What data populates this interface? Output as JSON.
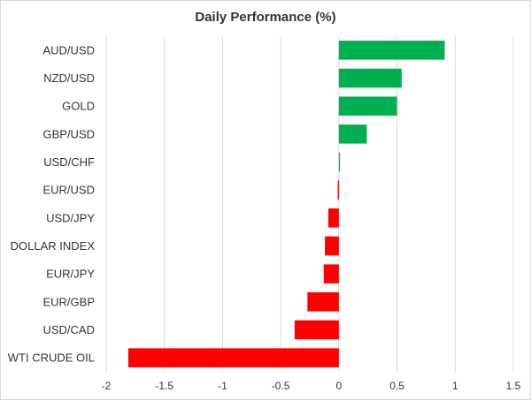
{
  "chart_data": {
    "type": "bar",
    "orientation": "horizontal",
    "title": "Daily Performance (%)",
    "xlabel": "",
    "ylabel": "",
    "xlim": [
      -2,
      1.5
    ],
    "x_ticks": [
      -2,
      -1.5,
      -1,
      -0.5,
      0,
      0.5,
      1,
      1.5
    ],
    "x_tick_labels": [
      "-2",
      "-1.5",
      "-1",
      "-0.5",
      "0",
      "0.5",
      "1",
      "1.5"
    ],
    "grid": true,
    "legend": "none",
    "categories": [
      "AUD/USD",
      "NZD/USD",
      "GOLD",
      "GBP/USD",
      "USD/CHF",
      "EUR/USD",
      "USD/JPY",
      "DOLLAR INDEX",
      "EUR/JPY",
      "EUR/GBP",
      "USD/CAD",
      "WTI CRUDE OIL"
    ],
    "values": [
      0.91,
      0.54,
      0.5,
      0.24,
      0.01,
      -0.01,
      -0.09,
      -0.12,
      -0.13,
      -0.27,
      -0.38,
      -1.81
    ],
    "colors": {
      "positive": "#00b050",
      "negative": "#ff0000",
      "grid": "#d9d9d9",
      "text": "#333333"
    }
  }
}
